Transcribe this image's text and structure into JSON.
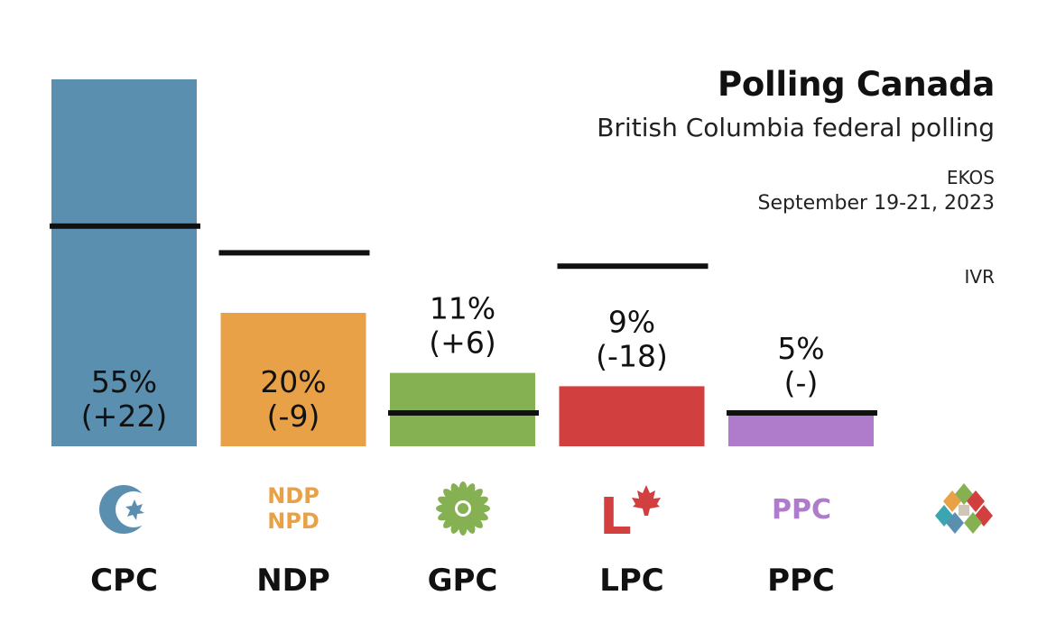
{
  "header": {
    "title": "Polling Canada",
    "subtitle": "British Columbia federal polling",
    "pollster": "EKOS",
    "dates": "September 19-21, 2023",
    "method": "IVR"
  },
  "logos": {
    "ndp_line1": "NDP",
    "ndp_line2": "NPD",
    "ppc": "PPC",
    "lpc_letter": "L"
  },
  "colors": {
    "CPC": "#5b8fb0",
    "NDP": "#e9a148",
    "GPC": "#86b152",
    "LPC": "#d13f3f",
    "PPC": "#ae7ccb",
    "previous_marker": "#111111"
  },
  "chart_data": {
    "type": "bar",
    "categories": [
      "CPC",
      "NDP",
      "GPC",
      "LPC",
      "PPC"
    ],
    "value_labels": [
      "55%",
      "20%",
      "11%",
      "9%",
      "5%"
    ],
    "change_labels": [
      "(+22)",
      "(-9)",
      "(+6)",
      "(-18)",
      "(-)"
    ],
    "series": [
      {
        "values": [
          55,
          20,
          11,
          9,
          5
        ]
      },
      {
        "values": [
          33,
          29,
          5,
          27,
          5
        ]
      }
    ],
    "ylim": [
      0,
      55
    ],
    "grid": false,
    "legend": "none"
  }
}
